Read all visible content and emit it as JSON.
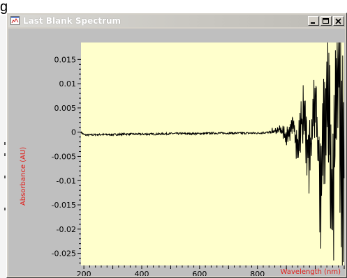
{
  "fragment": {
    "char": "g"
  },
  "window": {
    "title": "Last Blank Spectrum",
    "buttons": {
      "minimize": "minimize-icon",
      "maximize": "maximize-icon",
      "close": "close-icon"
    }
  },
  "colors": {
    "plot_bg": "#ffffcc",
    "axis_label": "#e0201c",
    "trace": "#000000",
    "chrome": "#d4d0c8",
    "client_bg": "#bfbfbf"
  },
  "chart_data": {
    "type": "line",
    "title": "",
    "xlabel": "Wavelength (nm)",
    "ylabel": "Absorbance (AU)",
    "xlim": [
      190,
      1100
    ],
    "ylim": [
      -0.0275,
      0.0185
    ],
    "xticks": [
      200,
      400,
      600,
      800
    ],
    "yticks": [
      0.015,
      0.01,
      0.005,
      0,
      -0.005,
      -0.01,
      -0.015,
      -0.02,
      -0.025
    ],
    "ytick_labels": [
      "0.015",
      "0.01",
      "0.005",
      "0",
      "-0.005",
      "-0.01",
      "-0.015",
      "-0.02",
      "-0.025"
    ],
    "xtick_labels": [
      "200",
      "400",
      "600",
      "800"
    ],
    "grid": false,
    "series": [
      {
        "values_x": [
          190,
          200,
          210,
          250,
          300,
          350,
          400,
          450,
          500,
          550,
          600,
          650,
          700,
          750,
          800,
          850,
          880,
          900,
          920,
          940,
          960,
          980,
          1000,
          1020,
          1040,
          1060,
          1080,
          1100
        ],
        "values_y": [
          0.0,
          -0.0005,
          -0.0006,
          -0.0005,
          -0.0005,
          -0.0004,
          -0.0004,
          -0.0004,
          -0.0003,
          -0.0003,
          -0.0003,
          -0.0002,
          -0.0002,
          -0.0002,
          -0.0002,
          0.0,
          0.0005,
          -0.001,
          0.0015,
          -0.0025,
          0.004,
          -0.006,
          0.008,
          -0.012,
          0.013,
          -0.018,
          0.016,
          -0.022
        ]
      }
    ]
  }
}
